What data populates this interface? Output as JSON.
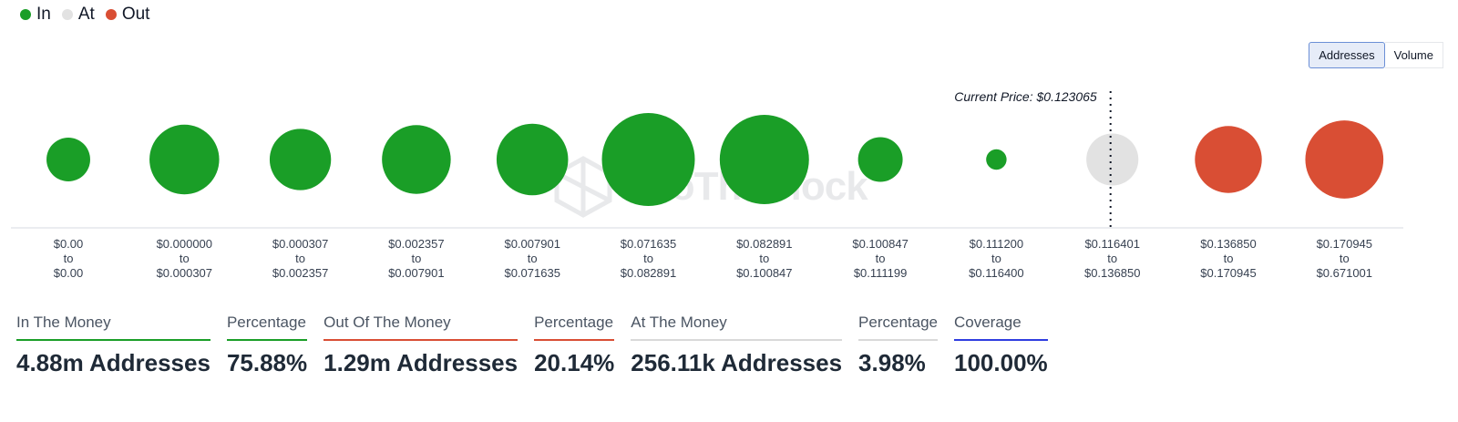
{
  "legend": [
    {
      "label": "In",
      "color": "#1a9e27"
    },
    {
      "label": "At",
      "color": "#e2e2e2"
    },
    {
      "label": "Out",
      "color": "#d94e34"
    }
  ],
  "toggle": {
    "addresses_label": "Addresses",
    "volume_label": "Volume",
    "active": "Addresses"
  },
  "watermark": "IntoTheBlock",
  "chart_data": {
    "type": "bubble",
    "current_price_label": "Current Price: $0.123065",
    "current_price_index": 9,
    "colors": {
      "in": "#1a9e27",
      "at": "#e2e2e2",
      "out": "#d94e34"
    },
    "buckets": [
      {
        "from": "$0.00",
        "to": "$0.00",
        "status": "in",
        "relative_size": 0.47
      },
      {
        "from": "$0.000000",
        "to": "$0.000307",
        "status": "in",
        "relative_size": 0.75
      },
      {
        "from": "$0.000307",
        "to": "$0.002357",
        "status": "in",
        "relative_size": 0.66
      },
      {
        "from": "$0.002357",
        "to": "$0.007901",
        "status": "in",
        "relative_size": 0.74
      },
      {
        "from": "$0.007901",
        "to": "$0.071635",
        "status": "in",
        "relative_size": 0.77
      },
      {
        "from": "$0.071635",
        "to": "$0.082891",
        "status": "in",
        "relative_size": 1.0
      },
      {
        "from": "$0.082891",
        "to": "$0.100847",
        "status": "in",
        "relative_size": 0.96
      },
      {
        "from": "$0.100847",
        "to": "$0.111199",
        "status": "in",
        "relative_size": 0.48
      },
      {
        "from": "$0.111200",
        "to": "$0.116400",
        "status": "in",
        "relative_size": 0.22
      },
      {
        "from": "$0.116401",
        "to": "$0.136850",
        "status": "at",
        "relative_size": 0.56
      },
      {
        "from": "$0.136850",
        "to": "$0.170945",
        "status": "out",
        "relative_size": 0.72
      },
      {
        "from": "$0.170945",
        "to": "$0.671001",
        "status": "out",
        "relative_size": 0.84
      }
    ]
  },
  "stats": [
    {
      "label": "In The Money",
      "value": "4.88m Addresses",
      "color": "#1a9e27"
    },
    {
      "label": "Percentage",
      "value": "75.88%",
      "color": "#1a9e27"
    },
    {
      "label": "Out Of The Money",
      "value": "1.29m Addresses",
      "color": "#d94e34"
    },
    {
      "label": "Percentage",
      "value": "20.14%",
      "color": "#d94e34"
    },
    {
      "label": "At The Money",
      "value": "256.11k Addresses",
      "color": "#d9d9d9"
    },
    {
      "label": "Percentage",
      "value": "3.98%",
      "color": "#d9d9d9"
    },
    {
      "label": "Coverage",
      "value": "100.00%",
      "color": "#2f3de0"
    }
  ]
}
